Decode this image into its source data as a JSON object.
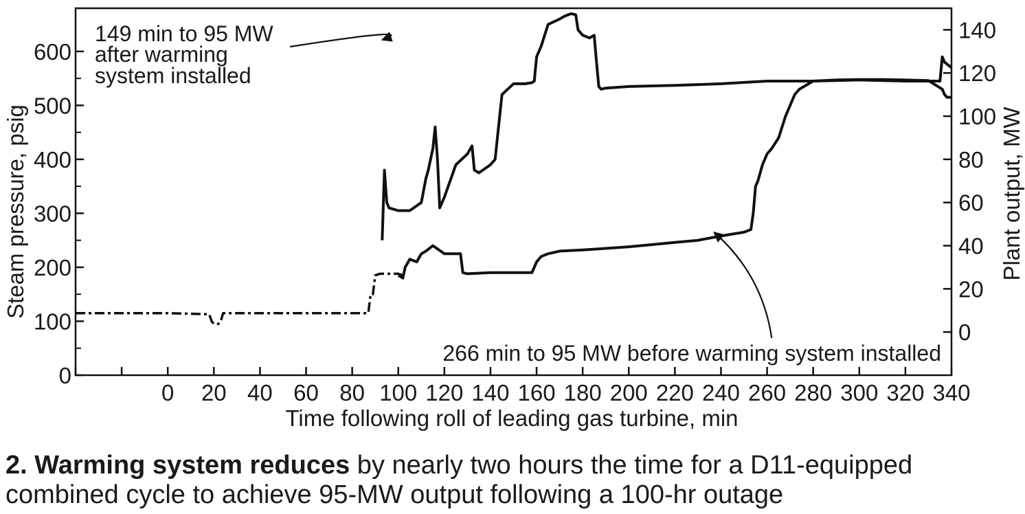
{
  "chart_data": {
    "type": "line",
    "xlabel": "Time following roll of leading gas turbine, min",
    "ylabel_left": "Steam pressure, psig",
    "ylabel_right": "Plant output, MW",
    "xlim": [
      -40,
      340
    ],
    "ylim_left": [
      0,
      680
    ],
    "ylim_right": [
      -20,
      150
    ],
    "x_ticks": [
      0,
      20,
      40,
      60,
      80,
      100,
      120,
      140,
      160,
      180,
      200,
      220,
      240,
      260,
      280,
      300,
      320,
      340
    ],
    "y_left_ticks": [
      0,
      100,
      200,
      300,
      400,
      500,
      600
    ],
    "y_right_ticks": [
      0,
      20,
      40,
      60,
      80,
      100,
      120,
      140
    ],
    "grid": false,
    "series": [
      {
        "axis": "left",
        "style": "solid",
        "x": [
          -40,
          87,
          88,
          90,
          92,
          93,
          94,
          95,
          96,
          100,
          105,
          110,
          112,
          113,
          115,
          116,
          117,
          118,
          120,
          125,
          130,
          132,
          133,
          135,
          140,
          142,
          143,
          145,
          150,
          155,
          158,
          159,
          160,
          162,
          165,
          170,
          172,
          175,
          177,
          178,
          180,
          183,
          185,
          186,
          187,
          188,
          190,
          200,
          220,
          240,
          260,
          280,
          300,
          320,
          335,
          336,
          337,
          340
        ],
        "values": [
          null,
          null,
          null,
          null,
          null,
          250,
          380,
          320,
          310,
          305,
          305,
          320,
          365,
          380,
          420,
          460,
          400,
          310,
          330,
          390,
          410,
          425,
          380,
          375,
          390,
          400,
          440,
          520,
          540,
          540,
          542,
          545,
          590,
          610,
          650,
          660,
          665,
          670,
          668,
          640,
          630,
          625,
          630,
          580,
          535,
          530,
          532,
          535,
          537,
          540,
          545,
          545,
          547,
          545,
          545,
          590,
          580,
          570
        ]
      },
      {
        "axis": "left",
        "style": "solid",
        "x": [
          -40,
          20,
          21,
          23,
          24,
          88,
          89,
          90,
          92,
          95,
          100,
          102,
          103,
          105,
          108,
          110,
          112,
          115,
          120,
          125,
          127,
          128,
          130,
          140,
          150,
          158,
          160,
          162,
          165,
          170,
          180,
          190,
          200,
          210,
          220,
          230,
          240,
          250,
          253,
          254,
          255,
          256,
          258,
          260,
          262,
          265,
          268,
          270,
          272,
          274,
          276,
          278,
          280,
          290,
          300,
          310,
          320,
          330,
          336,
          337,
          338,
          340
        ],
        "values": [
          null,
          null,
          null,
          null,
          null,
          null,
          null,
          null,
          null,
          null,
          185,
          180,
          200,
          215,
          210,
          225,
          230,
          240,
          225,
          225,
          225,
          190,
          188,
          190,
          190,
          190,
          210,
          220,
          225,
          230,
          232,
          235,
          238,
          242,
          246,
          250,
          258,
          265,
          270,
          300,
          350,
          360,
          390,
          410,
          420,
          440,
          480,
          500,
          520,
          530,
          535,
          540,
          545,
          547,
          548,
          548,
          547,
          546,
          530,
          520,
          515,
          515
        ]
      },
      {
        "axis": "left",
        "style": "dashed",
        "x": [
          -40,
          0,
          18,
          19,
          20,
          22,
          23,
          24,
          40,
          60,
          80,
          87,
          88,
          89,
          90,
          92,
          95,
          100,
          102
        ],
        "values": [
          115,
          115,
          113,
          100,
          95,
          95,
          100,
          115,
          115,
          115,
          115,
          115,
          150,
          150,
          185,
          188,
          188,
          188,
          185
        ]
      }
    ],
    "annotations": [
      {
        "lines": [
          "149 min to 95 MW",
          "after warming",
          "system installed"
        ]
      },
      {
        "lines": [
          "266 min to 95 MW before warming system installed"
        ]
      }
    ],
    "caption_bold": "2. Warming system reduces",
    "caption_rest": " by nearly two hours the time for a D11-equipped combined cycle to achieve 95-MW output following a 100-hr outage"
  }
}
